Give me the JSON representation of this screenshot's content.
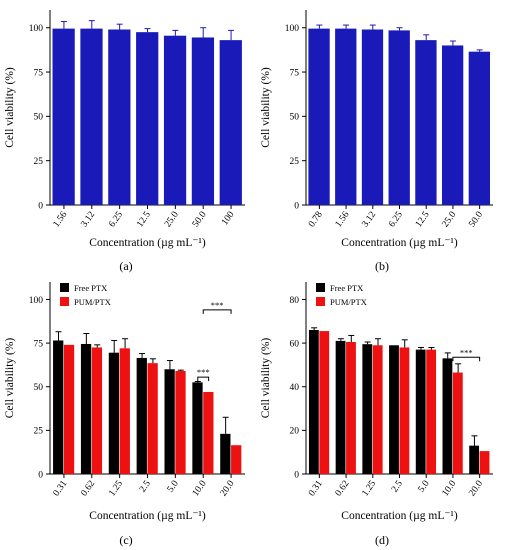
{
  "panel_labels": [
    "(a)",
    "(b)",
    "(c)",
    "(d)"
  ],
  "chart_data": [
    {
      "id": "a",
      "type": "bar",
      "panel_label": "(a)",
      "categories": [
        "1.56",
        "3.12",
        "6.25",
        "12.5",
        "25.0",
        "50.0",
        "100"
      ],
      "series": [
        {
          "values": [
            99.5,
            99.5,
            99.0,
            97.5,
            95.5,
            94.5,
            93.0
          ],
          "errors": [
            4.0,
            4.5,
            3.0,
            2.0,
            3.0,
            5.5,
            5.5
          ],
          "color": "#1a1ab8"
        }
      ],
      "xlabel": "Concentration (µg mL⁻¹)",
      "ylabel": "Cell viability (%)",
      "ylim": [
        0,
        110
      ],
      "yticks": [
        "0",
        "25",
        "50",
        "75",
        "100"
      ],
      "legend": null,
      "significance": []
    },
    {
      "id": "b",
      "type": "bar",
      "panel_label": "(b)",
      "categories": [
        "0.78",
        "1.56",
        "3.12",
        "6.25",
        "12.5",
        "25.0",
        "50.0"
      ],
      "series": [
        {
          "values": [
            99.5,
            99.5,
            99.0,
            98.5,
            93.0,
            90.0,
            86.5
          ],
          "errors": [
            2.0,
            2.0,
            2.5,
            1.5,
            3.0,
            2.5,
            1.0
          ],
          "color": "#1a1ab8"
        }
      ],
      "xlabel": "Concentration (µg mL⁻¹)",
      "ylabel": "Cell viability (%)",
      "ylim": [
        0,
        110
      ],
      "yticks": [
        "0",
        "25",
        "50",
        "75",
        "100"
      ],
      "legend": null,
      "significance": []
    },
    {
      "id": "c",
      "type": "bar",
      "panel_label": "(c)",
      "categories": [
        "0.31",
        "0.62",
        "1.25",
        "2.5",
        "5.0",
        "10.0",
        "20.0"
      ],
      "series": [
        {
          "name": "Free PTX",
          "values": [
            76.5,
            74.5,
            69.5,
            66.5,
            60.0,
            52.5,
            23.0
          ],
          "errors": [
            5.0,
            6.0,
            7.0,
            2.5,
            5.0,
            0.5,
            9.5
          ],
          "color": "#000000"
        },
        {
          "name": "PUM/PTX",
          "values": [
            74.0,
            72.5,
            72.0,
            63.5,
            59.0,
            47.0,
            16.5
          ],
          "errors": [
            0,
            1.5,
            5.5,
            2.5,
            0.5,
            0,
            0
          ],
          "color": "#ee1111"
        }
      ],
      "xlabel": "Concentration (µg mL⁻¹)",
      "ylabel": "Cell viability (%)",
      "ylim": [
        0,
        110
      ],
      "yticks": [
        "0",
        "25",
        "50",
        "75",
        "100"
      ],
      "legend": {
        "position": "top-left"
      },
      "significance": [
        {
          "label": "***",
          "from": 5,
          "to": 5,
          "value": 55.5
        },
        {
          "label": "***",
          "from": 5,
          "to": 6,
          "value": 94.0
        }
      ]
    },
    {
      "id": "d",
      "type": "bar",
      "panel_label": "(d)",
      "categories": [
        "0.31",
        "0.62",
        "1.25",
        "2.5",
        "5.0",
        "10.0",
        "20.0"
      ],
      "series": [
        {
          "name": "Free PTX",
          "values": [
            66.0,
            61.0,
            59.5,
            59.0,
            57.0,
            53.0,
            13.0
          ],
          "errors": [
            1.0,
            1.0,
            1.0,
            0,
            1.0,
            2.5,
            4.5
          ],
          "color": "#000000"
        },
        {
          "name": "PUM/PTX",
          "values": [
            65.5,
            60.5,
            59.0,
            58.0,
            57.0,
            46.5,
            10.5
          ],
          "errors": [
            0,
            3.0,
            3.0,
            3.5,
            1.0,
            4.0,
            0
          ],
          "color": "#ee1111"
        }
      ],
      "xlabel": "Concentration (µg mL⁻¹)",
      "ylabel": "Cell viability (%)",
      "ylim": [
        0,
        88
      ],
      "yticks": [
        "0",
        "20",
        "40",
        "60",
        "80"
      ],
      "legend": {
        "position": "top-left"
      },
      "significance": [
        {
          "label": "***",
          "from": 5,
          "to": 6,
          "value": 53.5
        }
      ]
    }
  ]
}
